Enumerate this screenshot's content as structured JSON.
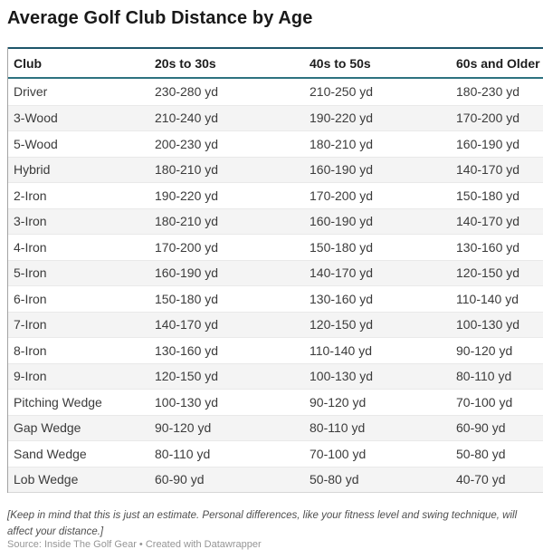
{
  "chart_data": {
    "type": "table",
    "title": "Average Golf Club Distance by Age",
    "columns": [
      "Club",
      "20s to 30s",
      "40s to 50s",
      "60s and Older"
    ],
    "rows": [
      [
        "Driver",
        "230-280 yd",
        "210-250 yd",
        "180-230 yd"
      ],
      [
        "3-Wood",
        "210-240 yd",
        "190-220 yd",
        "170-200 yd"
      ],
      [
        "5-Wood",
        "200-230 yd",
        "180-210 yd",
        "160-190 yd"
      ],
      [
        "Hybrid",
        "180-210 yd",
        "160-190 yd",
        "140-170 yd"
      ],
      [
        "2-Iron",
        "190-220 yd",
        "170-200 yd",
        "150-180 yd"
      ],
      [
        "3-Iron",
        "180-210 yd",
        "160-190 yd",
        "140-170 yd"
      ],
      [
        "4-Iron",
        "170-200 yd",
        "150-180 yd",
        "130-160 yd"
      ],
      [
        "5-Iron",
        "160-190 yd",
        "140-170 yd",
        "120-150 yd"
      ],
      [
        "6-Iron",
        "150-180 yd",
        "130-160 yd",
        "110-140 yd"
      ],
      [
        "7-Iron",
        "140-170 yd",
        "120-150 yd",
        "100-130 yd"
      ],
      [
        "8-Iron",
        "130-160 yd",
        "110-140 yd",
        "90-120 yd"
      ],
      [
        "9-Iron",
        "120-150 yd",
        "100-130 yd",
        "80-110 yd"
      ],
      [
        "Pitching Wedge",
        "100-130 yd",
        "90-120 yd",
        "70-100 yd"
      ],
      [
        "Gap Wedge",
        "90-120 yd",
        "80-110 yd",
        "60-90 yd"
      ],
      [
        "Sand Wedge",
        "80-110 yd",
        "70-100 yd",
        "50-80 yd"
      ],
      [
        "Lob Wedge",
        "60-90 yd",
        "50-80 yd",
        "40-70 yd"
      ],
      [
        "__layout_hints__",
        "striped rows, left-aligned columns",
        "teal header rules",
        "grid off"
      ]
    ],
    "notes_full": "[Keep in mind that this is just an estimate. Personal differences, like your fitness level and swing technique, will affect your distance.]"
  },
  "notes": {
    "line1": "[Keep in mind that this is just an estimate. Personal differences, like your fitness level and swing technique, will",
    "line2": "affect your distance.]"
  },
  "footer": {
    "source": "Source: Inside The Golf Gear • Created with Datawrapper"
  },
  "colors": {
    "rule_top": "#1e566a",
    "rule_header_bottom": "#2d7280",
    "row_stripe": "#f4f4f4",
    "left_border": "#a3a3a3",
    "title_text": "#191919",
    "cell_text": "#3b3b3b",
    "note_text": "#4e4e4e",
    "source_text": "#959595"
  }
}
